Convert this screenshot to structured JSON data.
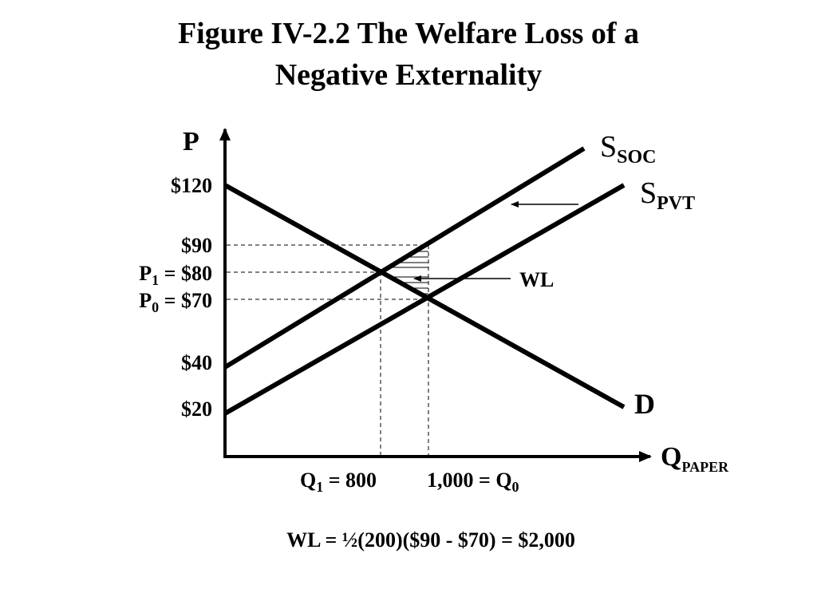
{
  "title": [
    "Figure IV-2.2 The Welfare Loss of a",
    "Negative Externality"
  ],
  "y_axis_label": "P",
  "x_axis_label": {
    "main": "Q",
    "sub": "PAPER"
  },
  "price_labels": [
    {
      "text": "$120"
    },
    {
      "text": "$90"
    },
    {
      "main": "P",
      "sub": "1",
      "rest": " = $80"
    },
    {
      "main": "P",
      "sub": "0",
      "rest": " = $70"
    },
    {
      "text": "$40"
    },
    {
      "text": "$20"
    }
  ],
  "curve_labels": {
    "social_supply": {
      "main": "S",
      "sub": "SOC"
    },
    "private_supply": {
      "main": "S",
      "sub": "PVT"
    },
    "demand": "D",
    "welfare_loss": "WL"
  },
  "quantity_labels": [
    {
      "main": "Q",
      "sub": "1",
      "rest": " = 800"
    },
    {
      "main": "1,000 = Q",
      "sub": "0"
    }
  ],
  "formula": "WL = ½(200)($90 - $70) = $2,000"
}
